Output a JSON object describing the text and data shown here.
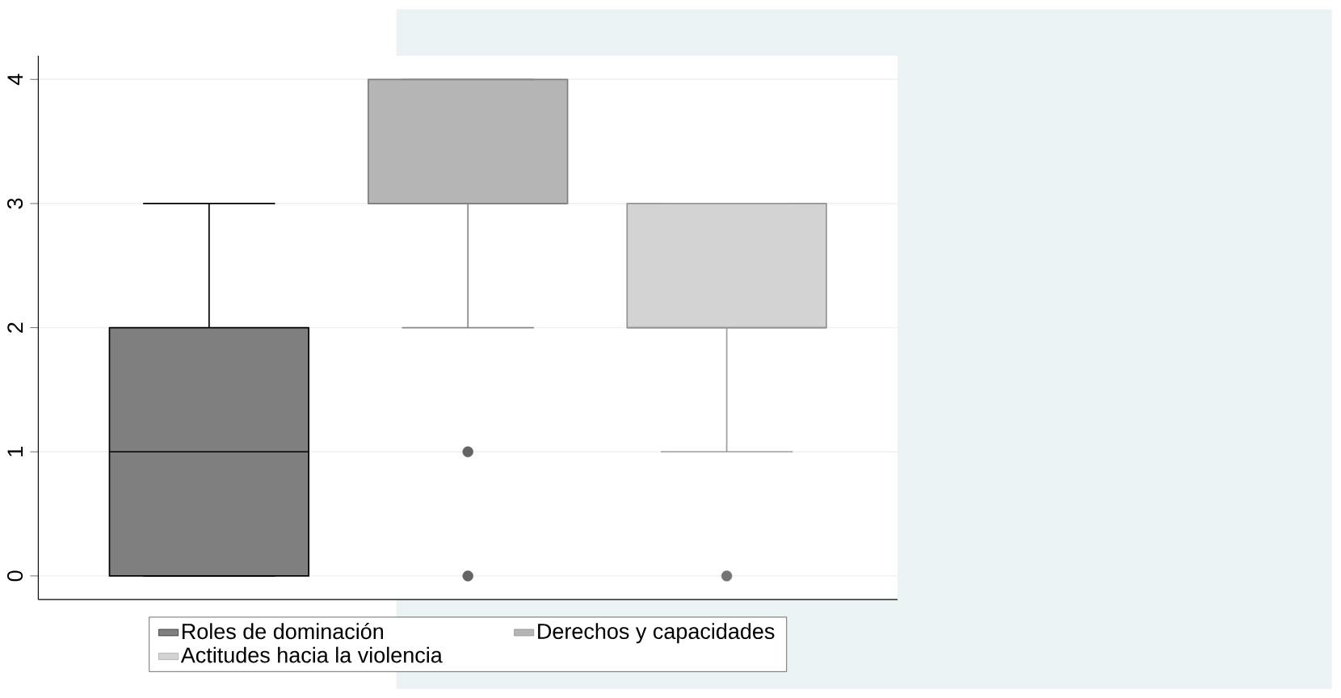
{
  "chart_data": {
    "type": "box",
    "categories": [
      null
    ],
    "series": [
      {
        "name": "Roles de dominación",
        "color": "#7f7f7f",
        "boxes": [
          {
            "low": 0,
            "q1": 0,
            "median": 1,
            "q3": 2,
            "high": 3
          }
        ]
      },
      {
        "name": "Derechos y capacidades",
        "color": "#b5b5b5",
        "boxes": [
          {
            "low": 2,
            "q1": 3,
            "median": 3,
            "q3": 4,
            "high": 4,
            "outliers": [
              1,
              0
            ]
          }
        ]
      },
      {
        "name": "Actitudes hacia la violencia",
        "color": "#d3d3d3",
        "boxes": [
          {
            "low": 1,
            "q1": 2,
            "median": 2,
            "q3": 3,
            "high": 3,
            "outliers": [
              0
            ]
          }
        ]
      }
    ],
    "ylim": [
      -0.19,
      4.19
    ],
    "yticks": [
      0,
      1,
      2,
      3,
      4
    ],
    "grid": "y",
    "legend": "bottom",
    "tick_labels": "y"
  }
}
